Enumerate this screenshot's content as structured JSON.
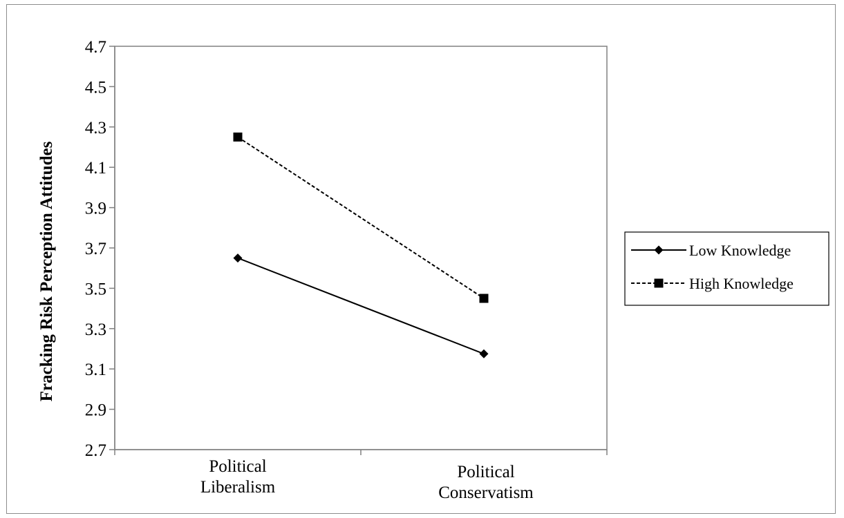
{
  "chart_data": {
    "type": "line",
    "title": "",
    "xlabel": "",
    "ylabel": "Fracking  Risk Perception Attitudes",
    "categories": [
      [
        "Political",
        "Liberalism"
      ],
      [
        "Political",
        "Conservatism"
      ]
    ],
    "yticks": [
      "2.7",
      "2.9",
      "3.1",
      "3.3",
      "3.5",
      "3.7",
      "3.9",
      "4.1",
      "4.3",
      "4.5",
      "4.7"
    ],
    "ylim": [
      2.7,
      4.7
    ],
    "grid": false,
    "legend_position": "right",
    "series": [
      {
        "name": "Low Knowledge",
        "values": [
          3.65,
          3.175
        ],
        "line_style": "solid",
        "marker": "diamond",
        "color": "#000000"
      },
      {
        "name": "High Knowledge",
        "values": [
          4.25,
          3.45
        ],
        "line_style": "dashed",
        "marker": "square",
        "color": "#000000"
      }
    ]
  }
}
